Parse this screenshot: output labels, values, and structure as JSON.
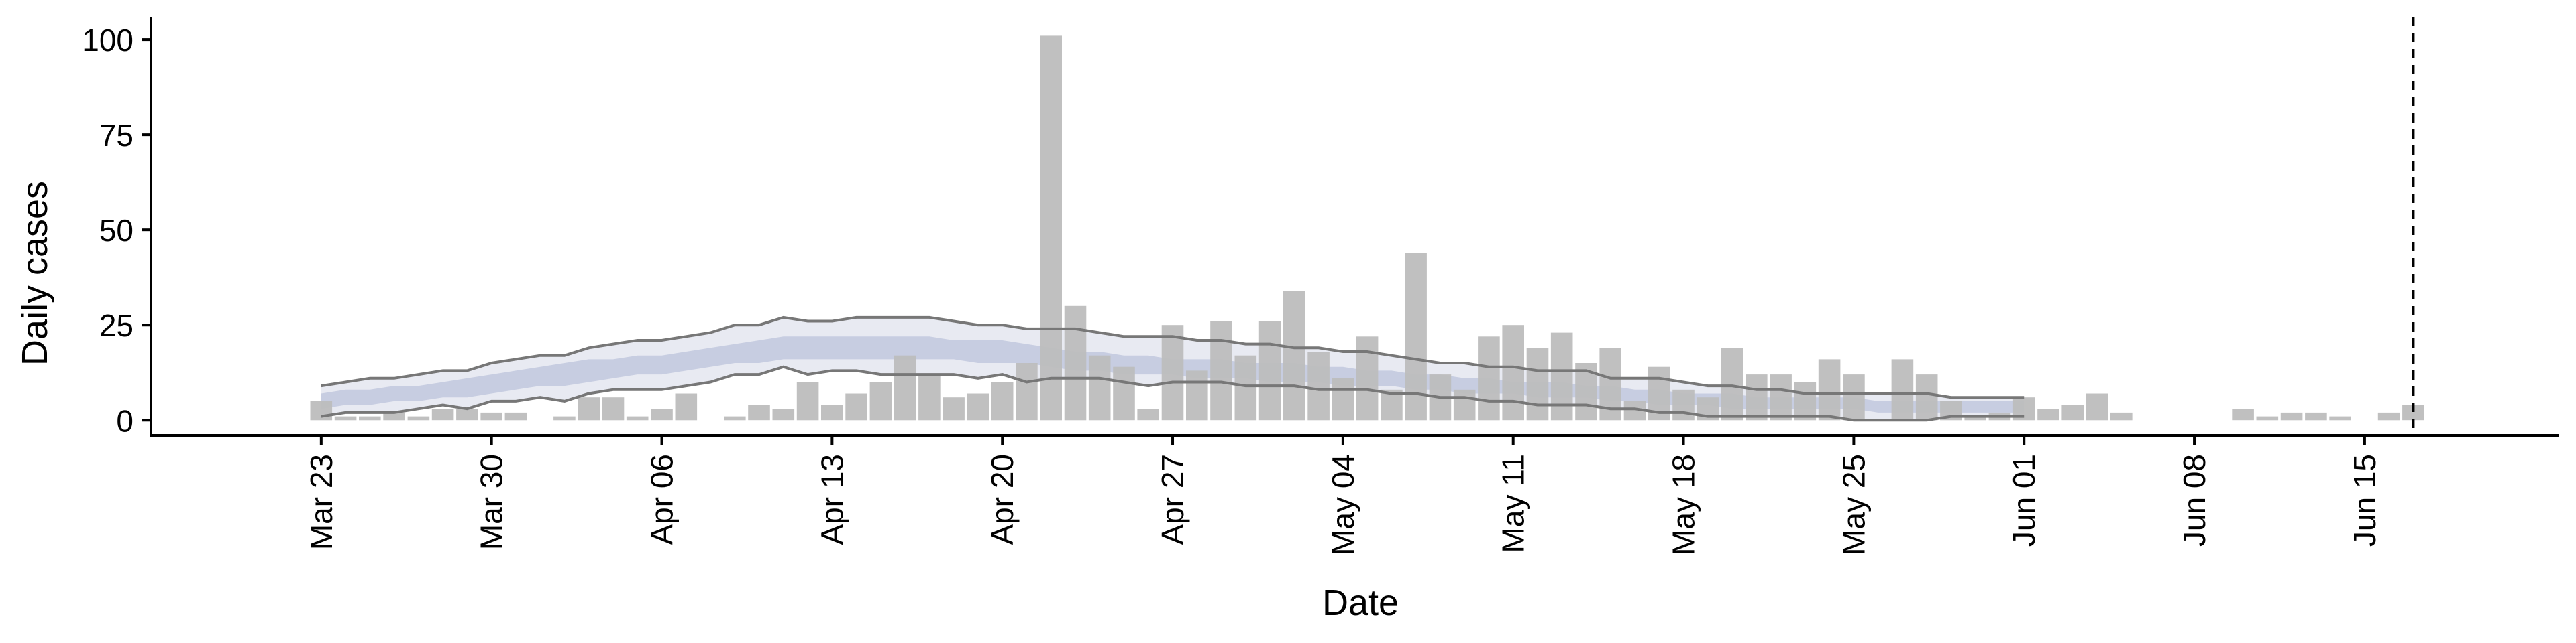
{
  "chart_data": {
    "type": "bar",
    "xlabel": "Date",
    "ylabel": "Daily cases",
    "x_range": [
      "2020-03-16",
      "2020-06-23"
    ],
    "ylim": [
      -4,
      106
    ],
    "y_ticks": [
      0,
      25,
      50,
      75,
      100
    ],
    "x_ticks": [
      {
        "date": "2020-03-23",
        "label": "Mar 23"
      },
      {
        "date": "2020-03-30",
        "label": "Mar 30"
      },
      {
        "date": "2020-04-06",
        "label": "Apr 06"
      },
      {
        "date": "2020-04-13",
        "label": "Apr 13"
      },
      {
        "date": "2020-04-20",
        "label": "Apr 20"
      },
      {
        "date": "2020-04-27",
        "label": "Apr 27"
      },
      {
        "date": "2020-05-04",
        "label": "May 04"
      },
      {
        "date": "2020-05-11",
        "label": "May 11"
      },
      {
        "date": "2020-05-18",
        "label": "May 18"
      },
      {
        "date": "2020-05-25",
        "label": "May 25"
      },
      {
        "date": "2020-06-01",
        "label": "Jun 01"
      },
      {
        "date": "2020-06-08",
        "label": "Jun 08"
      },
      {
        "date": "2020-06-15",
        "label": "Jun 15"
      }
    ],
    "grid": false,
    "bars": {
      "start_date": "2020-03-23",
      "color": "#bdbdbd",
      "values": [
        5,
        1,
        1,
        2,
        1,
        3,
        3,
        2,
        2,
        0,
        1,
        6,
        6,
        1,
        3,
        7,
        0,
        1,
        4,
        3,
        10,
        4,
        7,
        10,
        17,
        12,
        6,
        7,
        10,
        15,
        101,
        30,
        17,
        14,
        3,
        25,
        13,
        26,
        17,
        26,
        34,
        18,
        11,
        22,
        8,
        44,
        12,
        8,
        22,
        25,
        19,
        23,
        15,
        19,
        5,
        14,
        8,
        6,
        19,
        12,
        12,
        10,
        16,
        12,
        0,
        16,
        12,
        5,
        1,
        2,
        6,
        3,
        4,
        7,
        2,
        0,
        0,
        0,
        0,
        3,
        1,
        2,
        2,
        1,
        0,
        2,
        4
      ]
    },
    "band_outer": {
      "start_date": "2020-03-23",
      "color": "#e6e8f1",
      "line_color": "#777777",
      "upper": [
        9,
        10,
        11,
        11,
        12,
        13,
        13,
        15,
        16,
        17,
        17,
        19,
        20,
        21,
        21,
        22,
        23,
        25,
        25,
        27,
        26,
        26,
        27,
        27,
        27,
        27,
        26,
        25,
        25,
        24,
        24,
        24,
        23,
        22,
        22,
        22,
        21,
        21,
        20,
        20,
        19,
        19,
        18,
        18,
        17,
        16,
        15,
        15,
        14,
        14,
        13,
        13,
        13,
        11,
        11,
        11,
        10,
        9,
        9,
        8,
        8,
        7,
        7,
        7,
        7,
        7,
        7,
        6,
        6,
        6,
        6
      ],
      "lower": [
        1,
        2,
        2,
        2,
        3,
        4,
        3,
        5,
        5,
        6,
        5,
        7,
        8,
        8,
        8,
        9,
        10,
        12,
        12,
        14,
        12,
        13,
        13,
        12,
        12,
        12,
        12,
        11,
        12,
        10,
        11,
        11,
        11,
        10,
        9,
        10,
        10,
        10,
        9,
        9,
        9,
        8,
        8,
        8,
        7,
        7,
        6,
        6,
        5,
        5,
        4,
        4,
        4,
        3,
        3,
        2,
        2,
        1,
        1,
        1,
        1,
        1,
        1,
        0,
        0,
        0,
        0,
        1,
        1,
        1,
        1
      ]
    },
    "band_inner": {
      "start_date": "2020-03-23",
      "color": "#c3cadf",
      "upper": [
        7,
        8,
        8,
        9,
        9,
        10,
        11,
        12,
        13,
        14,
        15,
        16,
        16,
        17,
        17,
        18,
        19,
        20,
        21,
        22,
        22,
        22,
        22,
        22,
        22,
        22,
        21,
        21,
        21,
        20,
        19,
        18,
        18,
        17,
        17,
        16,
        16,
        16,
        15,
        15,
        15,
        14,
        14,
        13,
        13,
        12,
        12,
        11,
        11,
        10,
        10,
        10,
        9,
        9,
        8,
        8,
        7,
        7,
        7,
        6,
        6,
        6,
        6,
        6,
        5,
        5,
        5,
        5,
        5,
        5,
        5
      ],
      "lower": [
        3,
        4,
        4,
        5,
        5,
        6,
        6,
        7,
        8,
        9,
        9,
        10,
        11,
        12,
        12,
        13,
        14,
        15,
        15,
        16,
        16,
        16,
        16,
        16,
        16,
        16,
        16,
        15,
        15,
        15,
        14,
        13,
        13,
        12,
        12,
        12,
        11,
        11,
        11,
        10,
        10,
        10,
        9,
        9,
        9,
        8,
        8,
        7,
        7,
        7,
        6,
        6,
        6,
        5,
        5,
        4,
        4,
        4,
        3,
        3,
        3,
        3,
        3,
        3,
        2,
        2,
        2,
        2,
        2,
        2,
        2
      ]
    },
    "vline": {
      "date": "2020-06-17",
      "style": "dashed"
    }
  }
}
